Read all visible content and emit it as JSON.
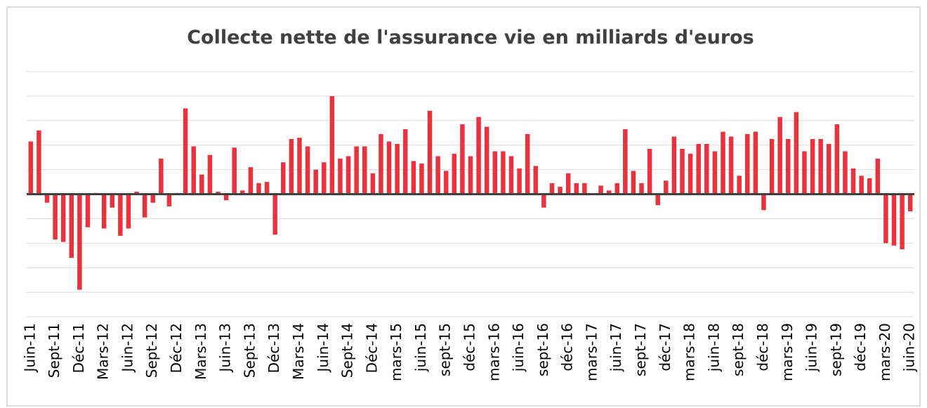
{
  "chart_data": {
    "type": "bar",
    "title": "Collecte nette de l'assurance vie en milliards d'euros",
    "categories": [
      "Juin-11",
      null,
      null,
      "Sept-11",
      null,
      null,
      "Déc-11",
      null,
      null,
      "Mars-12",
      null,
      null,
      "Juin-12",
      null,
      null,
      "Sept-12",
      null,
      null,
      "Déc-12",
      null,
      null,
      "Mars-13",
      null,
      null,
      "Juin-13",
      null,
      null,
      "Sept-13",
      null,
      null,
      "Déc-13",
      null,
      null,
      "Mars-14",
      null,
      null,
      "Juin-14",
      null,
      null,
      "Sept-14",
      null,
      null,
      "Déc-14",
      null,
      null,
      "mars-15",
      null,
      null,
      "juin-15",
      null,
      null,
      "sept-15",
      null,
      null,
      "déc-15",
      null,
      null,
      "mars-16",
      null,
      null,
      "juin-16",
      null,
      null,
      "sept-16",
      null,
      null,
      "déc-16",
      null,
      null,
      "mars-17",
      null,
      null,
      "juin-17",
      null,
      null,
      "sept-17",
      null,
      null,
      "déc-17",
      null,
      null,
      "mars-18",
      null,
      null,
      "juin-18",
      null,
      null,
      "sept-18",
      null,
      null,
      "déc-18",
      null,
      null,
      "mars-19",
      null,
      null,
      "juin-19",
      null,
      null,
      "sept-19",
      null,
      null,
      "déc-19",
      null,
      null,
      "mars-20",
      null,
      null,
      "juin-20"
    ],
    "values": [
      2.15,
      2.6,
      -0.35,
      -1.85,
      -1.95,
      -2.6,
      -3.9,
      -1.35,
      0.05,
      -1.4,
      -0.55,
      -1.7,
      -1.4,
      0.1,
      -0.95,
      -0.35,
      1.45,
      -0.5,
      0.05,
      3.5,
      1.95,
      0.8,
      1.6,
      0.1,
      -0.25,
      1.9,
      0.15,
      1.1,
      0.45,
      0.5,
      -1.65,
      1.3,
      2.25,
      2.3,
      1.95,
      1.0,
      1.3,
      4.0,
      1.45,
      1.55,
      1.95,
      1.95,
      0.85,
      2.45,
      2.15,
      2.05,
      2.65,
      1.35,
      1.25,
      3.4,
      1.55,
      0.95,
      1.65,
      2.85,
      1.55,
      3.15,
      2.75,
      1.75,
      1.75,
      1.55,
      1.05,
      2.45,
      1.15,
      -0.55,
      0.45,
      0.3,
      0.85,
      0.45,
      0.45,
      0,
      0.35,
      0.15,
      0.45,
      2.65,
      0.95,
      0.45,
      1.85,
      -0.45,
      0.55,
      2.35,
      1.85,
      1.65,
      2.05,
      2.05,
      1.75,
      2.55,
      2.35,
      0.75,
      2.45,
      2.55,
      -0.65,
      2.25,
      3.15,
      2.25,
      3.35,
      1.75,
      2.25,
      2.25,
      2.05,
      2.85,
      1.75,
      1.05,
      0.75,
      0.65,
      1.45,
      -2.0,
      -2.1,
      -2.25,
      -0.7
    ],
    "color": "#e8333f",
    "ylim": [
      -5,
      5
    ],
    "yticks": [
      -5,
      -4,
      -3,
      -2,
      -1,
      0,
      1,
      2,
      3,
      4,
      5
    ],
    "grid": true
  }
}
